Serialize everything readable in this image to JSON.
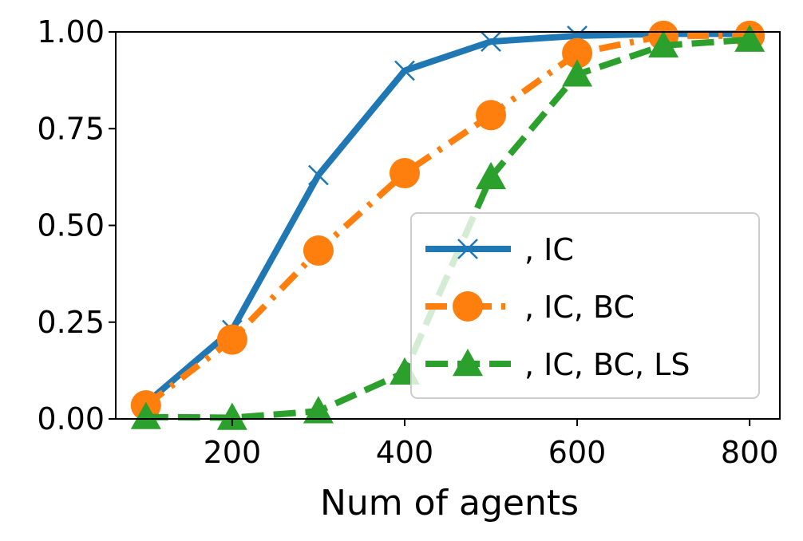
{
  "chart_data": {
    "type": "line",
    "xlabel": "Num of agents",
    "ylabel": "",
    "x": [
      100,
      200,
      300,
      400,
      500,
      600,
      700,
      800
    ],
    "xlim": [
      65,
      835
    ],
    "ylim": [
      0,
      1
    ],
    "xticks": [
      "200",
      "400",
      "600",
      "800"
    ],
    "yticks": [
      "0.00",
      "0.25",
      "0.50",
      "0.75",
      "1.00"
    ],
    "grid": false,
    "legend_position": "lower-right",
    "series": [
      {
        "name": ", IC",
        "color": "#1f77b4",
        "line_style": "solid",
        "marker": "x",
        "values": [
          0.04,
          0.23,
          0.63,
          0.9,
          0.975,
          0.99,
          0.995,
          0.995
        ]
      },
      {
        "name": ", IC, BC",
        "color": "#ff7f0e",
        "line_style": "dash-dot",
        "marker": "circle",
        "values": [
          0.035,
          0.205,
          0.435,
          0.635,
          0.785,
          0.945,
          0.99,
          0.99
        ]
      },
      {
        "name": ", IC, BC, LS",
        "color": "#2ca02c",
        "line_style": "dashed",
        "marker": "triangle",
        "values": [
          0.005,
          0.003,
          0.02,
          0.12,
          0.625,
          0.89,
          0.965,
          0.98
        ]
      }
    ]
  }
}
